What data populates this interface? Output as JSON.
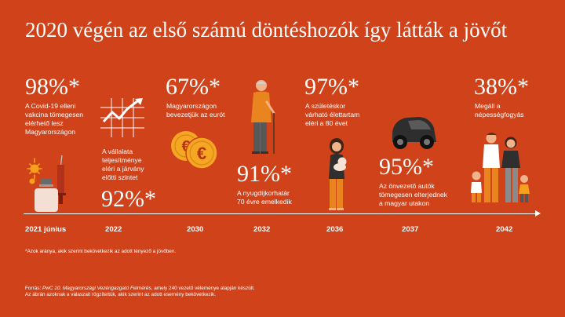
{
  "title": "2020 végén az első számú döntéshozók így látták a jövőt",
  "items": [
    {
      "percent": "98%*",
      "text": [
        "A Covid-19 elleni",
        "vakcina tömegesen",
        "elérhető lesz",
        "Magyarországon"
      ],
      "year": "2021 június",
      "icon": "vaccine-vial-icon"
    },
    {
      "percent": "92%*",
      "text": [
        "A vállalata",
        "teljesítménye",
        "eléri a járvány",
        "előtti szintet"
      ],
      "year": "2022",
      "icon": "growth-chart-icon"
    },
    {
      "percent": "67%*",
      "text": [
        "Magyarországon",
        "bevezetjük az eurót"
      ],
      "year": "2030",
      "icon": "euro-coins-icon"
    },
    {
      "percent": "91%*",
      "text": [
        "A nyugdíjkorhatár",
        "70 évre emelkedik"
      ],
      "year": "2032",
      "icon": "elderly-man-icon"
    },
    {
      "percent": "97%*",
      "text": [
        "A születéskor",
        "várható élettartam",
        "eléri a 80 évet"
      ],
      "year": "2036",
      "icon": "mother-baby-icon"
    },
    {
      "percent": "95%*",
      "text": [
        "Az önvezető autók",
        "tömegesen elterjednek",
        "a magyar utakon"
      ],
      "year": "2037",
      "icon": "self-driving-car-icon"
    },
    {
      "percent": "38%*",
      "text": [
        "Megáll a",
        "népességfogyás"
      ],
      "year": "2042",
      "icon": "family-icon"
    }
  ],
  "footnote": "*Azok aránya, akik szerint bekövetkezik az adott tényező a jövőben.",
  "source_prefix": "Forrás: ",
  "source_title": "PwC 10. Magyarországi Vezérigazgató Felmérés",
  "source_rest": ", amely 240 vezető véleménye alapján készült.",
  "source_line2": "Az ábrán azoknak a válaszait rögzítettük, akik szerint az adott esemény bekövetkezik.",
  "colors": {
    "background": "#d0421a",
    "text": "#ffffff",
    "coin": "#f5a623",
    "skin": "#f1b48a"
  }
}
